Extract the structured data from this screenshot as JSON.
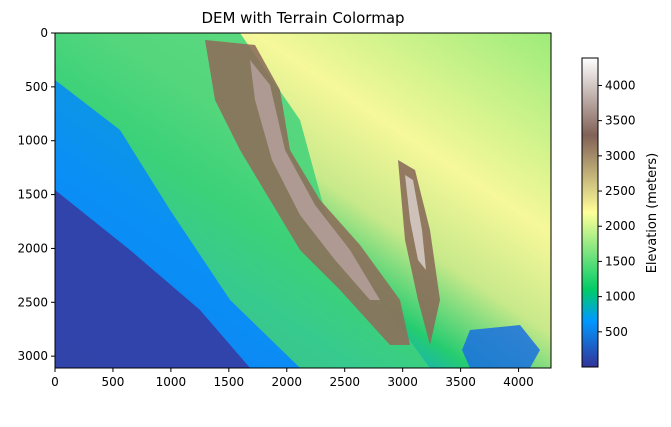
{
  "chart_data": {
    "type": "heatmap",
    "title": "DEM with Terrain Colormap",
    "xlabel": "",
    "ylabel": "",
    "xlim": [
      0,
      4280
    ],
    "ylim": [
      3110,
      0
    ],
    "y_inverted": true,
    "x_ticks": [
      0,
      500,
      1000,
      1500,
      2000,
      2500,
      3000,
      3500,
      4000
    ],
    "y_ticks": [
      0,
      500,
      1000,
      1500,
      2000,
      2500,
      3000
    ],
    "colormap": "terrain",
    "colorbar": {
      "label": "Elevation (meters)",
      "range": [
        0,
        4390
      ],
      "ticks": [
        500,
        1000,
        1500,
        2000,
        2500,
        3000,
        3500,
        4000
      ]
    },
    "colors": {
      "deep_low": "#333399",
      "low": "#0099ff",
      "mid_low": "#22cc77",
      "mid": "#ffff99",
      "high": "#816157",
      "peak": "#ffffff"
    }
  }
}
